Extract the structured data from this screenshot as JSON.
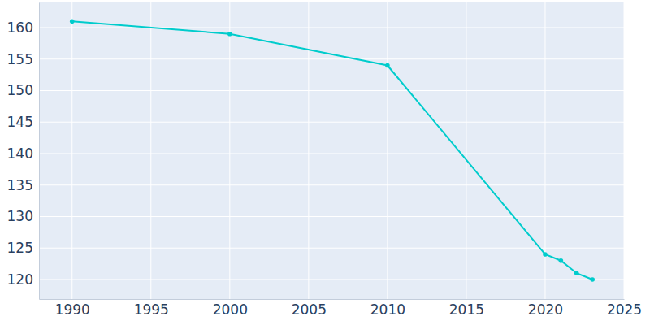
{
  "chart_data": {
    "type": "line",
    "x": [
      1990,
      2000,
      2010,
      2020,
      2021,
      2022,
      2023
    ],
    "values": [
      161,
      159,
      154,
      124,
      123,
      121,
      120
    ],
    "color": "#00cccc",
    "marker": "circle",
    "xlim": [
      1987.9,
      2025
    ],
    "ylim": [
      116.9,
      164
    ],
    "xticks": [
      1990,
      1995,
      2000,
      2005,
      2010,
      2015,
      2020,
      2025
    ],
    "yticks": [
      120,
      125,
      130,
      135,
      140,
      145,
      150,
      155,
      160
    ],
    "grid": true
  }
}
